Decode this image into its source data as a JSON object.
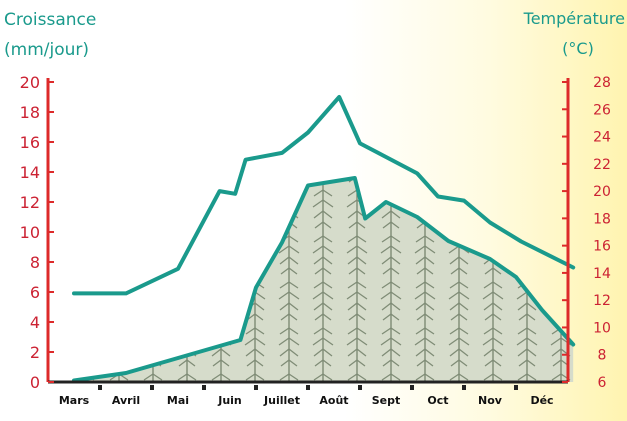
{
  "chart_data": {
    "type": "line",
    "left_axis": {
      "title_line1": "Croissance",
      "title_line2": "(mm/jour)",
      "ylim": [
        0,
        20
      ],
      "ticks": [
        0,
        2,
        4,
        6,
        8,
        10,
        12,
        14,
        16,
        18,
        20
      ]
    },
    "right_axis": {
      "title_line1": "Température",
      "title_line2": "(°C)",
      "ylim": [
        6,
        28
      ],
      "ticks": [
        6,
        8,
        10,
        12,
        14,
        16,
        18,
        20,
        22,
        24,
        26,
        28
      ]
    },
    "categories": [
      "Mars",
      "Avril",
      "Mai",
      "Juin",
      "Juillet",
      "Août",
      "Sept",
      "Oct",
      "Nov",
      "Déc"
    ],
    "series": [
      {
        "role": "growth",
        "axis": "left",
        "color": "#1a9a8c",
        "fill": "#cfd6c4",
        "points": [
          [
            0.0,
            0.1
          ],
          [
            1.0,
            0.6
          ],
          [
            2.0,
            1.6
          ],
          [
            3.2,
            2.8
          ],
          [
            3.5,
            6.3
          ],
          [
            4.0,
            9.3
          ],
          [
            4.5,
            13.1
          ],
          [
            5.4,
            13.6
          ],
          [
            5.6,
            10.9
          ],
          [
            6.0,
            12.0
          ],
          [
            6.6,
            11.0
          ],
          [
            7.2,
            9.4
          ],
          [
            8.0,
            8.2
          ],
          [
            8.5,
            7.0
          ],
          [
            9.0,
            4.8
          ],
          [
            9.6,
            2.5
          ]
        ]
      },
      {
        "role": "temperature",
        "axis": "right",
        "color": "#1a9a8c",
        "points": [
          [
            0.0,
            12.5
          ],
          [
            1.0,
            12.5
          ],
          [
            2.0,
            14.3
          ],
          [
            2.8,
            20.0
          ],
          [
            3.1,
            19.8
          ],
          [
            3.3,
            22.3
          ],
          [
            4.0,
            22.8
          ],
          [
            4.5,
            24.3
          ],
          [
            5.1,
            26.9
          ],
          [
            5.5,
            23.5
          ],
          [
            6.0,
            22.5
          ],
          [
            6.6,
            21.3
          ],
          [
            7.0,
            19.6
          ],
          [
            7.5,
            19.3
          ],
          [
            8.0,
            17.7
          ],
          [
            8.6,
            16.3
          ],
          [
            9.6,
            14.4
          ]
        ]
      }
    ]
  }
}
